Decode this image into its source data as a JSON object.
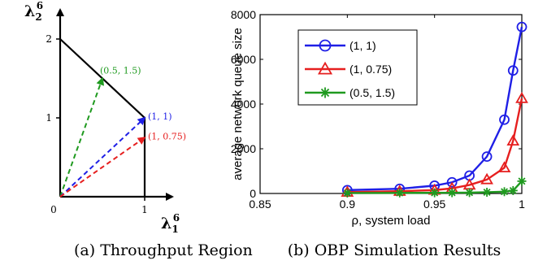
{
  "left_chart": {
    "caption": "(a) Throughput Region",
    "xlabel": "λ",
    "xlabel_sub": "1",
    "xlabel_sup": "6",
    "ylabel": "λ",
    "ylabel_sub": "2",
    "ylabel_sup": "6",
    "x_ticks": [
      "0",
      "1"
    ],
    "y_ticks": [
      "1",
      "2"
    ]
  },
  "right_chart": {
    "caption": "(b) OBP Simulation Results",
    "legend_entries": [
      "(1, 1)",
      "(1, 0.75)",
      "(0.5, 1.5)"
    ]
  },
  "colors": {
    "blue": "#1f1fe6",
    "red": "#e61f1f",
    "green": "#1f9a1f",
    "axis": "#000000"
  },
  "chart_data": [
    {
      "type": "line",
      "title": "",
      "xlabel": "λ₁⁶",
      "ylabel": "λ₂⁶",
      "xlim": [
        0,
        1.3
      ],
      "ylim": [
        0,
        2.35
      ],
      "region": [
        [
          0,
          2
        ],
        [
          1,
          1
        ],
        [
          1,
          0
        ]
      ],
      "vectors": [
        {
          "name": "(0.5, 1.5)",
          "label": "(0.5, 1.5)",
          "x": 0.5,
          "y": 1.5,
          "color": "#1f9a1f"
        },
        {
          "name": "(1, 1)",
          "label": "(1, 1)",
          "x": 1,
          "y": 1,
          "color": "#1f1fe6"
        },
        {
          "name": "(1, 0.75)",
          "label": "(1, 0.75)",
          "x": 1,
          "y": 0.75,
          "color": "#e61f1f"
        }
      ]
    },
    {
      "type": "line",
      "title": "",
      "xlabel": "ρ, system load",
      "ylabel": "average network queue size",
      "xlim": [
        0.85,
        1.0
      ],
      "ylim": [
        0,
        8000
      ],
      "x_ticks": [
        0.85,
        0.9,
        0.95,
        1
      ],
      "x_tick_labels": [
        "0.85",
        "0.9",
        "0.95",
        "1"
      ],
      "y_ticks": [
        0,
        2000,
        4000,
        6000,
        8000
      ],
      "y_tick_labels": [
        "0",
        "2000",
        "4000",
        "6000",
        "8000"
      ],
      "grid": false,
      "legend_position": "top-left",
      "series": [
        {
          "name": "(1, 1)",
          "color": "#1f1fe6",
          "marker": "circle",
          "x": [
            0.9,
            0.93,
            0.95,
            0.96,
            0.97,
            0.98,
            0.99,
            0.995,
            1.0
          ],
          "y": [
            150,
            210,
            350,
            500,
            800,
            1650,
            3300,
            5500,
            7450
          ]
        },
        {
          "name": "(1, 0.75)",
          "color": "#e61f1f",
          "marker": "triangle",
          "x": [
            0.9,
            0.93,
            0.95,
            0.96,
            0.97,
            0.98,
            0.99,
            0.995,
            1.0
          ],
          "y": [
            60,
            100,
            150,
            230,
            380,
            620,
            1150,
            2350,
            4250
          ]
        },
        {
          "name": "(0.5, 1.5)",
          "color": "#1f9a1f",
          "marker": "star",
          "x": [
            0.9,
            0.93,
            0.95,
            0.96,
            0.97,
            0.98,
            0.99,
            0.995,
            1.0
          ],
          "y": [
            20,
            25,
            30,
            35,
            40,
            55,
            80,
            130,
            550
          ]
        }
      ]
    }
  ]
}
